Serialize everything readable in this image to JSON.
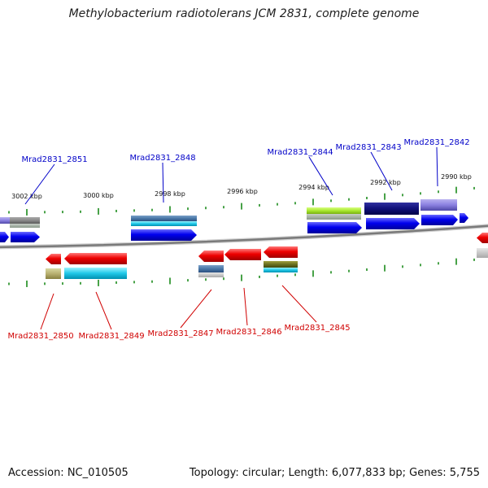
{
  "title": "Methylobacterium radiotolerans JCM 2831, complete genome",
  "footer": {
    "accession": "Accession: NC_010505",
    "summary": "Topology: circular; Length: 6,077,833 bp; Genes: 5,755"
  },
  "colors": {
    "forward_label": "#0000c8",
    "reverse_label": "#d00000",
    "tick": "#1a8a1a",
    "backbone": "#808080"
  },
  "scale_labels": [
    "3002 kbp",
    "3000 kbp",
    "2998 kbp",
    "2996 kbp",
    "2994 kbp",
    "2992 kbp",
    "2990 kbp"
  ],
  "forward_genes": [
    "Mrad2831_2851",
    "Mrad2831_2848",
    "Mrad2831_2844",
    "Mrad2831_2843",
    "Mrad2831_2842"
  ],
  "reverse_genes": [
    "Mrad2831_2850",
    "Mrad2831_2849",
    "Mrad2831_2847",
    "Mrad2831_2846",
    "Mrad2831_2845"
  ]
}
